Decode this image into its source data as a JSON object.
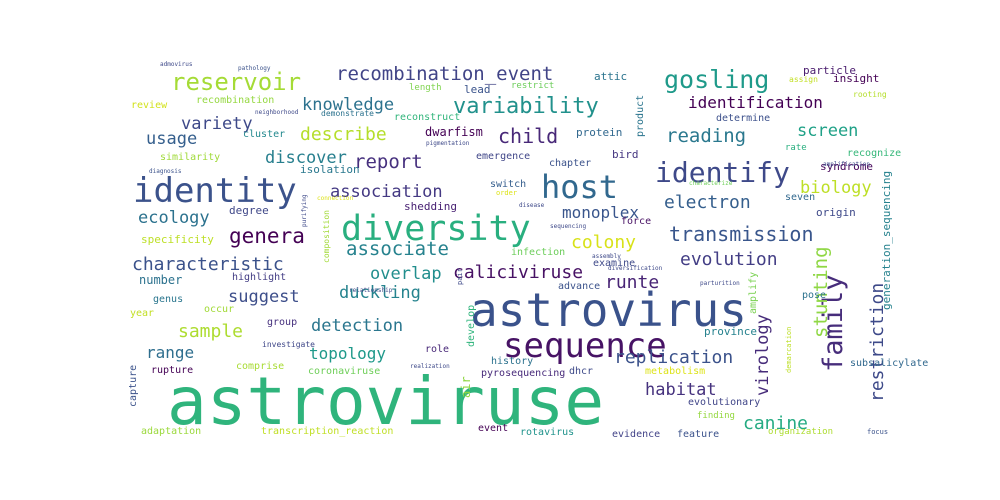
{
  "cloud": {
    "words": [
      {
        "text": "astroviruse",
        "color": "#2fb47c"
      },
      {
        "text": "astrovirus",
        "color": "#3a528b"
      },
      {
        "text": "sequence",
        "color": "#471365"
      },
      {
        "text": "diversity",
        "color": "#29af7f"
      },
      {
        "text": "identity",
        "color": "#3b528b"
      },
      {
        "text": "host",
        "color": "#31688e"
      },
      {
        "text": "identify",
        "color": "#3e4989"
      },
      {
        "text": "family",
        "color": "#472d7b"
      },
      {
        "text": "gosling",
        "color": "#1f9a8a"
      },
      {
        "text": "reservoir",
        "color": "#a5db36"
      },
      {
        "text": "variability",
        "color": "#21918c"
      },
      {
        "text": "recombination_event",
        "color": "#414487"
      },
      {
        "text": "knowledge",
        "color": "#2c728e"
      },
      {
        "text": "identification",
        "color": "#440154"
      },
      {
        "text": "describe",
        "color": "#b5de2b"
      },
      {
        "text": "child",
        "color": "#482878"
      },
      {
        "text": "reading",
        "color": "#2a788e"
      },
      {
        "text": "screen",
        "color": "#1fa187"
      },
      {
        "text": "variety",
        "color": "#3e4989"
      },
      {
        "text": "usage",
        "color": "#355f8d"
      },
      {
        "text": "discover",
        "color": "#277f8e"
      },
      {
        "text": "report",
        "color": "#46307e"
      },
      {
        "text": "association",
        "color": "#443983"
      },
      {
        "text": "biology",
        "color": "#bddf26"
      },
      {
        "text": "ecology",
        "color": "#2c728e"
      },
      {
        "text": "electron",
        "color": "#355f8d"
      },
      {
        "text": "genera",
        "color": "#440154"
      },
      {
        "text": "associate",
        "color": "#26828e"
      },
      {
        "text": "transmission",
        "color": "#39568c"
      },
      {
        "text": "colony",
        "color": "#d8e219"
      },
      {
        "text": "characteristic",
        "color": "#3b528b"
      },
      {
        "text": "evolution",
        "color": "#433e85"
      },
      {
        "text": "overlap",
        "color": "#218e8d"
      },
      {
        "text": "caliciviruse",
        "color": "#471164"
      },
      {
        "text": "runte",
        "color": "#482475"
      },
      {
        "text": "suggest",
        "color": "#3d4e8a"
      },
      {
        "text": "duckling",
        "color": "#25838e"
      },
      {
        "text": "stunting",
        "color": "#8fd744"
      },
      {
        "text": "virology",
        "color": "#472c7a"
      },
      {
        "text": "restriction",
        "color": "#3e4a89"
      },
      {
        "text": "sample",
        "color": "#addc30"
      },
      {
        "text": "detection",
        "color": "#2a768e"
      },
      {
        "text": "range",
        "color": "#2e6e8e"
      },
      {
        "text": "topology",
        "color": "#1f998a"
      },
      {
        "text": "replication",
        "color": "#3b528b"
      },
      {
        "text": "habitat",
        "color": "#46327e"
      },
      {
        "text": "canine",
        "color": "#25ab82"
      },
      {
        "text": "monoplex",
        "color": "#39558c"
      },
      {
        "text": "particle",
        "color": "#481a6c"
      },
      {
        "text": "insight",
        "color": "#440154"
      },
      {
        "text": "attic",
        "color": "#2b748e"
      },
      {
        "text": "lead",
        "color": "#3a538b"
      },
      {
        "text": "restrict",
        "color": "#6ccd5a"
      },
      {
        "text": "product",
        "color": "#2b758e"
      },
      {
        "text": "length",
        "color": "#7fd34e"
      },
      {
        "text": "reconstruct",
        "color": "#31b57b"
      },
      {
        "text": "dwarfism",
        "color": "#440154"
      },
      {
        "text": "protein",
        "color": "#31688e"
      },
      {
        "text": "cluster",
        "color": "#23898e"
      },
      {
        "text": "recombination",
        "color": "#95d840"
      },
      {
        "text": "review",
        "color": "#d2e21b"
      },
      {
        "text": "similarity",
        "color": "#a0da39"
      },
      {
        "text": "emergence",
        "color": "#404688"
      },
      {
        "text": "chapter",
        "color": "#3b528b"
      },
      {
        "text": "bird",
        "color": "#453781"
      },
      {
        "text": "syndrome",
        "color": "#450559"
      },
      {
        "text": "recognize",
        "color": "#35b779"
      },
      {
        "text": "determine",
        "color": "#3c508b"
      },
      {
        "text": "rate",
        "color": "#29af7f"
      },
      {
        "text": "isolation",
        "color": "#2a788e"
      },
      {
        "text": "shedding",
        "color": "#482173"
      },
      {
        "text": "switch",
        "color": "#355e8d"
      },
      {
        "text": "degree",
        "color": "#3f4788"
      },
      {
        "text": "origin",
        "color": "#3e4989"
      },
      {
        "text": "seven",
        "color": "#31688e"
      },
      {
        "text": "force",
        "color": "#471063"
      },
      {
        "text": "infection",
        "color": "#6ccd5a"
      },
      {
        "text": "examine",
        "color": "#3e4989"
      },
      {
        "text": "specificity",
        "color": "#bddf26"
      },
      {
        "text": "number",
        "color": "#2c728e"
      },
      {
        "text": "highlight",
        "color": "#433d84"
      },
      {
        "text": "advance",
        "color": "#3b528b"
      },
      {
        "text": "pose",
        "color": "#2c728e"
      },
      {
        "text": "amplify",
        "color": "#7ad151"
      },
      {
        "text": "genus",
        "color": "#2a768e"
      },
      {
        "text": "occur",
        "color": "#a2da37"
      },
      {
        "text": "year",
        "color": "#c2df23"
      },
      {
        "text": "group",
        "color": "#46307e"
      },
      {
        "text": "develop",
        "color": "#2fb47c"
      },
      {
        "text": "province",
        "color": "#26828e"
      },
      {
        "text": "comprise",
        "color": "#a8db34"
      },
      {
        "text": "investigate",
        "color": "#3f4788"
      },
      {
        "text": "role",
        "color": "#482878"
      },
      {
        "text": "history",
        "color": "#2c728e"
      },
      {
        "text": "rupture",
        "color": "#440154"
      },
      {
        "text": "coronaviruse",
        "color": "#6ece58"
      },
      {
        "text": "pyrosequencing",
        "color": "#472a7a"
      },
      {
        "text": "dhcr",
        "color": "#3e4a89"
      },
      {
        "text": "metabolism",
        "color": "#dde318"
      },
      {
        "text": "subsalicylate",
        "color": "#31688e"
      },
      {
        "text": "capture",
        "color": "#3b528b"
      },
      {
        "text": "air",
        "color": "#90d743"
      },
      {
        "text": "evolutionary",
        "color": "#404588"
      },
      {
        "text": "finding",
        "color": "#95d840"
      },
      {
        "text": "adaptation",
        "color": "#9bd93c"
      },
      {
        "text": "transcription_reaction",
        "color": "#c0df25"
      },
      {
        "text": "event",
        "color": "#440154"
      },
      {
        "text": "rotavirus",
        "color": "#20938c"
      },
      {
        "text": "evidence",
        "color": "#414287"
      },
      {
        "text": "feature",
        "color": "#3b528b"
      },
      {
        "text": "organization",
        "color": "#addc30"
      },
      {
        "text": "focus",
        "color": "#3b528b"
      },
      {
        "text": "generation_sequencing",
        "color": "#26828e"
      },
      {
        "text": "demonstrate",
        "color": "#2c728e"
      },
      {
        "text": "neighborhood",
        "color": "#3e4989"
      },
      {
        "text": "pathology",
        "color": "#3b528b"
      },
      {
        "text": "admovirus",
        "color": "#3e4989"
      },
      {
        "text": "diagnosis",
        "color": "#3b528b"
      },
      {
        "text": "assign",
        "color": "#c2df23"
      },
      {
        "text": "rooting",
        "color": "#b5de2b"
      },
      {
        "text": "amplification",
        "color": "#3e4989"
      },
      {
        "text": "characterize",
        "color": "#6ece58"
      },
      {
        "text": "demarcation",
        "color": "#bddf26"
      },
      {
        "text": "connection",
        "color": "#dde318"
      },
      {
        "text": "composition",
        "color": "#a2da37"
      },
      {
        "text": "purifying",
        "color": "#3e4989"
      },
      {
        "text": "assembly",
        "color": "#3e4989"
      },
      {
        "text": "diversification",
        "color": "#3e4989"
      },
      {
        "text": "relationship",
        "color": "#3e4989"
      },
      {
        "text": "realization",
        "color": "#3e4989"
      },
      {
        "text": "pair",
        "color": "#3e4989"
      },
      {
        "text": "sequencing",
        "color": "#3e4989"
      },
      {
        "text": "disease",
        "color": "#3e4989"
      },
      {
        "text": "order",
        "color": "#dde318"
      },
      {
        "text": "parturition",
        "color": "#3e4989"
      },
      {
        "text": "pigmentation",
        "color": "#3e4989"
      }
    ]
  }
}
